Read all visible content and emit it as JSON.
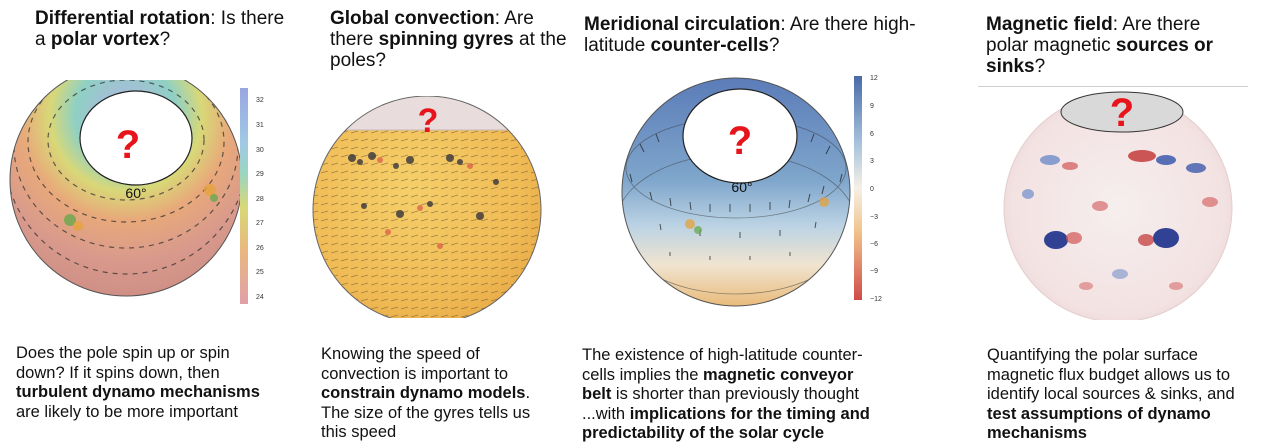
{
  "panels": [
    {
      "title_bold": "Differential rotation",
      "title_a": ": Is there a ",
      "title_bold2": "polar vortex",
      "title_b": "?",
      "question_mark": "?",
      "latitude_label": "60°",
      "colorbar_ticks": [
        "32",
        "31",
        "30",
        "29",
        "28",
        "27",
        "26",
        "25",
        "24"
      ],
      "desc_a": "Does the pole spin up or spin down? If it spins down, then ",
      "desc_bold": "turbulent dynamo mechanisms",
      "desc_b": " are likely to be more important"
    },
    {
      "title_bold": "Global convection",
      "title_a": ": Are there ",
      "title_bold2": "spinning gyres",
      "title_b": " at the poles?",
      "question_mark": "?",
      "desc_a": "Knowing the speed of convection is important to ",
      "desc_bold": "constrain dynamo models",
      "desc_b": ". The size of the gyres tells us this speed"
    },
    {
      "title_bold": "Meridional circulation",
      "title_a": ": Are there high-latitude ",
      "title_bold2": "counter-cells",
      "title_b": "?",
      "question_mark": "?",
      "latitude_label": "60°",
      "colorbar_ticks": [
        "12",
        "9",
        "6",
        "3",
        "0",
        "−3",
        "−6",
        "−9",
        "−12"
      ],
      "desc_a": "The existence of high-latitude counter-cells implies the ",
      "desc_bold": "magnetic conveyor belt",
      "desc_b": " is shorter than previously thought ...with ",
      "desc_bold2": "implications for the timing and predictability of the solar cycle"
    },
    {
      "title_bold": "Magnetic field",
      "title_a": ": Are there polar magnetic ",
      "title_bold2": "sources or sinks",
      "title_b": "?",
      "question_mark": "?",
      "desc_a": "Quantifying the polar surface magnetic flux budget allows us to identify local sources & sinks, and ",
      "desc_bold": "test assumptions of dynamo mechanisms"
    }
  ],
  "colors": {
    "question_mark": "#e8141b",
    "colorbar_rotation_top": "#9aa6e0",
    "colorbar_rotation_bottom": "#e0a0a8",
    "colorbar_meridional_top": "#4a6aa8",
    "colorbar_meridional_bottom": "#d04a4a"
  }
}
